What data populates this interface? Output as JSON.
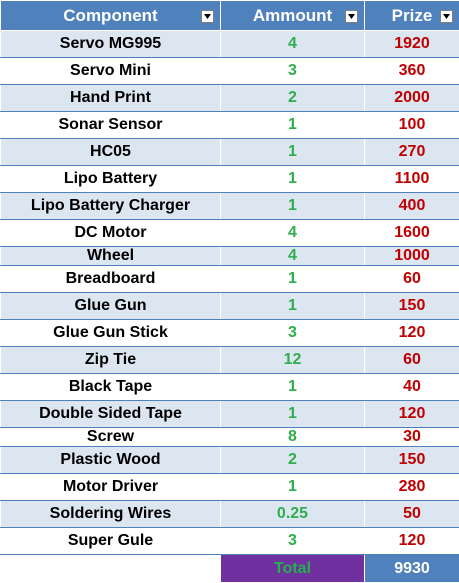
{
  "headers": {
    "component": "Component",
    "amount": "Ammount",
    "prize": "Prize"
  },
  "rows": [
    {
      "component": "Servo MG995",
      "amount": "4",
      "prize": "1920"
    },
    {
      "component": "Servo Mini",
      "amount": "3",
      "prize": "360"
    },
    {
      "component": "Hand Print",
      "amount": "2",
      "prize": "2000"
    },
    {
      "component": "Sonar Sensor",
      "amount": "1",
      "prize": "100"
    },
    {
      "component": "HC05",
      "amount": "1",
      "prize": "270"
    },
    {
      "component": "Lipo Battery",
      "amount": "1",
      "prize": "1100"
    },
    {
      "component": "Lipo Battery Charger",
      "amount": "1",
      "prize": "400"
    },
    {
      "component": "DC Motor",
      "amount": "4",
      "prize": "1600"
    },
    {
      "component": "Wheel",
      "amount": "4",
      "prize": "1000"
    },
    {
      "component": "Breadboard",
      "amount": "1",
      "prize": "60"
    },
    {
      "component": "Glue Gun",
      "amount": "1",
      "prize": "150"
    },
    {
      "component": "Glue Gun Stick",
      "amount": "3",
      "prize": "120"
    },
    {
      "component": "Zip Tie",
      "amount": "12",
      "prize": "60"
    },
    {
      "component": "Black Tape",
      "amount": "1",
      "prize": "40"
    },
    {
      "component": "Double Sided Tape",
      "amount": "1",
      "prize": "120"
    },
    {
      "component": "Screw",
      "amount": "8",
      "prize": "30"
    },
    {
      "component": "Plastic Wood",
      "amount": "2",
      "prize": "150"
    },
    {
      "component": "Motor Driver",
      "amount": "1",
      "prize": "280"
    },
    {
      "component": "Soldering Wires",
      "amount": "0.25",
      "prize": "50"
    },
    {
      "component": "Super Gule",
      "amount": "3",
      "prize": "120"
    }
  ],
  "total": {
    "label": "Total",
    "value": "9930"
  },
  "colors": {
    "header_bg": "#4f81bd",
    "band_bg": "#dce6f1",
    "amount_text": "#2fae4e",
    "prize_text": "#c00000",
    "total_label_bg": "#7030a0"
  },
  "icons": {
    "filter": "dropdown-arrow-icon"
  }
}
